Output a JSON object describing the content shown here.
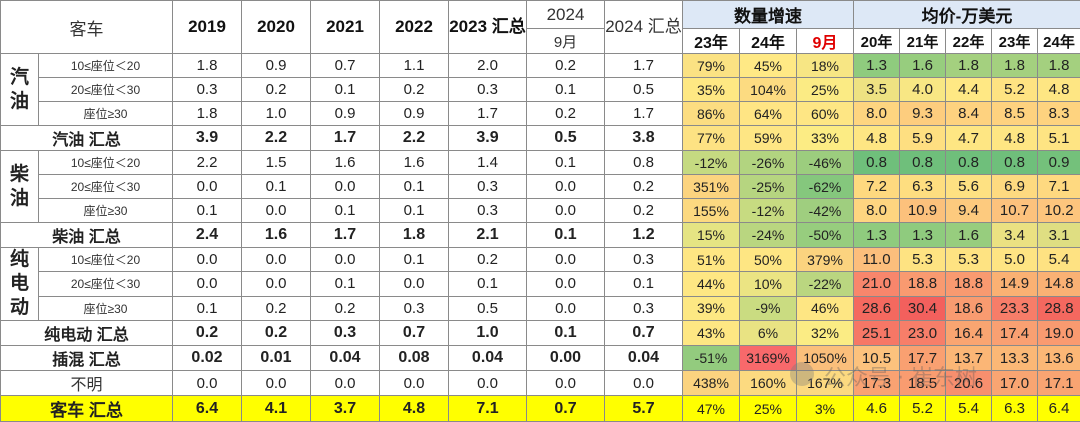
{
  "header": {
    "corner": "客车",
    "years": [
      "2019",
      "2020",
      "2021",
      "2022"
    ],
    "y2023_total": "2023 汇总",
    "y2024_top": "2024",
    "y2024_sub": "9月",
    "y2024_total": "2024 汇总",
    "growth_group": "数量增速",
    "growth_cols": [
      "23年",
      "24年",
      "9月"
    ],
    "price_group": "均价-万美元",
    "price_cols": [
      "20年",
      "21年",
      "22年",
      "23年",
      "24年"
    ]
  },
  "categories": {
    "gas": "汽油",
    "diesel": "柴油",
    "ev": "纯电动"
  },
  "rows": [
    {
      "label": "10≤座位＜20",
      "type": "sub",
      "vals": [
        "1.8",
        "0.9",
        "0.7",
        "1.1",
        "2.0",
        "0.2",
        "1.7"
      ],
      "growth": [
        "79%",
        "45%",
        "18%"
      ],
      "gbg": [
        "#fbe283",
        "#ffe985",
        "#f7e684"
      ],
      "price": [
        "1.3",
        "1.6",
        "1.8",
        "1.8",
        "1.8"
      ],
      "pbg": [
        "#8fcb7e",
        "#97cd7e",
        "#a4d07f",
        "#a4d07f",
        "#a4d07f"
      ]
    },
    {
      "label": "20≤座位＜30",
      "type": "sub",
      "vals": [
        "0.3",
        "0.2",
        "0.1",
        "0.2",
        "0.3",
        "0.1",
        "0.5"
      ],
      "growth": [
        "35%",
        "104%",
        "25%"
      ],
      "gbg": [
        "#fee883",
        "#fcdb81",
        "#fbeb84"
      ],
      "price": [
        "3.5",
        "4.0",
        "4.4",
        "5.2",
        "4.8"
      ],
      "pbg": [
        "#eee282",
        "#f8e784",
        "#ffe884",
        "#fee382",
        "#fee683"
      ]
    },
    {
      "label": "座位≥30",
      "type": "sub",
      "vals": [
        "1.8",
        "1.0",
        "0.9",
        "0.9",
        "1.7",
        "0.2",
        "1.7"
      ],
      "growth": [
        "86%",
        "64%",
        "60%"
      ],
      "gbg": [
        "#fcdd81",
        "#ffe584",
        "#fee684"
      ],
      "price": [
        "8.0",
        "9.3",
        "8.4",
        "8.5",
        "8.3"
      ],
      "pbg": [
        "#fed580",
        "#fdcd7e",
        "#fed27f",
        "#fed27f",
        "#fed37f"
      ]
    },
    {
      "label": "汽油 汇总",
      "type": "subtotal",
      "vals": [
        "3.9",
        "2.2",
        "1.7",
        "2.2",
        "3.9",
        "0.5",
        "3.8"
      ],
      "growth": [
        "77%",
        "59%",
        "33%"
      ],
      "gbg": [
        "#fde283",
        "#fee684",
        "#fcec84"
      ],
      "price": [
        "4.8",
        "5.9",
        "4.7",
        "4.8",
        "5.1"
      ],
      "pbg": [
        "#fee683",
        "#fedf81",
        "#fee683",
        "#fee683",
        "#fee483"
      ]
    },
    {
      "label": "10≤座位＜20",
      "type": "sub",
      "vals": [
        "2.2",
        "1.5",
        "1.6",
        "1.6",
        "1.4",
        "0.1",
        "0.8"
      ],
      "growth": [
        "-12%",
        "-26%",
        "-46%"
      ],
      "gbg": [
        "#c5da81",
        "#b2d480",
        "#9ccd7e"
      ],
      "price": [
        "0.8",
        "0.8",
        "0.8",
        "0.8",
        "0.9"
      ],
      "pbg": [
        "#6fbf7b",
        "#6fbf7b",
        "#6fbf7b",
        "#6fbf7b",
        "#74c17b"
      ]
    },
    {
      "label": "20≤座位＜30",
      "type": "sub",
      "vals": [
        "0.0",
        "0.1",
        "0.0",
        "0.1",
        "0.3",
        "0.0",
        "0.2"
      ],
      "growth": [
        "351%",
        "-25%",
        "-62%"
      ],
      "gbg": [
        "#fcd47f",
        "#b6d580",
        "#85c77d"
      ],
      "price": [
        "7.2",
        "6.3",
        "5.6",
        "6.9",
        "7.1"
      ],
      "pbg": [
        "#fed97f",
        "#fede80",
        "#fee182",
        "#feda80",
        "#fed980"
      ]
    },
    {
      "label": "座位≥30",
      "type": "sub",
      "vals": [
        "0.1",
        "0.0",
        "0.1",
        "0.1",
        "0.3",
        "0.0",
        "0.2"
      ],
      "growth": [
        "155%",
        "-12%",
        "-42%"
      ],
      "gbg": [
        "#fcd980",
        "#c7db81",
        "#9fce7f"
      ],
      "price": [
        "8.0",
        "10.9",
        "9.4",
        "10.7",
        "10.2"
      ],
      "pbg": [
        "#fed580",
        "#fcc17c",
        "#fdca7e",
        "#fcc27d",
        "#fdc57d"
      ]
    },
    {
      "label": "柴油 汇总",
      "type": "subtotal",
      "vals": [
        "2.4",
        "1.6",
        "1.7",
        "1.8",
        "2.1",
        "0.1",
        "1.2"
      ],
      "growth": [
        "15%",
        "-24%",
        "-50%"
      ],
      "gbg": [
        "#e5e483",
        "#b9d680",
        "#97cd7e"
      ],
      "price": [
        "1.3",
        "1.3",
        "1.6",
        "3.4",
        "3.1"
      ],
      "pbg": [
        "#8fcb7e",
        "#8fcb7e",
        "#97cd7e",
        "#ebe182",
        "#dfde82"
      ]
    },
    {
      "label": "10≤座位＜20",
      "type": "sub",
      "vals": [
        "0.0",
        "0.0",
        "0.0",
        "0.1",
        "0.2",
        "0.0",
        "0.3"
      ],
      "growth": [
        "51%",
        "50%",
        "379%"
      ],
      "gbg": [
        "#fee683",
        "#fee683",
        "#fbd37f"
      ],
      "price": [
        "11.0",
        "5.3",
        "5.3",
        "5.0",
        "5.4"
      ],
      "pbg": [
        "#fcbe7c",
        "#fee382",
        "#fee382",
        "#fee483",
        "#fee282"
      ]
    },
    {
      "label": "20≤座位＜30",
      "type": "sub",
      "vals": [
        "0.0",
        "0.0",
        "0.1",
        "0.0",
        "0.1",
        "0.0",
        "0.1"
      ],
      "growth": [
        "44%",
        "10%",
        "-22%"
      ],
      "gbg": [
        "#fee783",
        "#ebe483",
        "#bad680"
      ],
      "price": [
        "21.0",
        "18.8",
        "18.8",
        "14.9",
        "14.8"
      ],
      "pbg": [
        "#f8866c",
        "#f99a70",
        "#f99a70",
        "#fab173",
        "#fab174"
      ]
    },
    {
      "label": "座位≥30",
      "type": "sub",
      "vals": [
        "0.1",
        "0.2",
        "0.2",
        "0.3",
        "0.5",
        "0.0",
        "0.3"
      ],
      "growth": [
        "39%",
        "-9%",
        "46%"
      ],
      "gbg": [
        "#fde883",
        "#cadc81",
        "#fee683"
      ],
      "price": [
        "28.6",
        "30.4",
        "18.6",
        "23.3",
        "28.8"
      ],
      "pbg": [
        "#f4695f",
        "#f3605d",
        "#f99b70",
        "#f77d69",
        "#f4685f"
      ]
    },
    {
      "label": "纯电动 汇总",
      "type": "subtotal",
      "vals": [
        "0.2",
        "0.2",
        "0.3",
        "0.7",
        "1.0",
        "0.1",
        "0.7"
      ],
      "growth": [
        "43%",
        "6%",
        "32%"
      ],
      "gbg": [
        "#fee783",
        "#e9e383",
        "#fbec84"
      ],
      "price": [
        "25.1",
        "23.0",
        "16.4",
        "17.4",
        "19.0"
      ],
      "pbg": [
        "#f67766",
        "#f77e69",
        "#f9a571",
        "#f9a072",
        "#f99a70"
      ]
    },
    {
      "label": "插混 汇总",
      "type": "subtotal",
      "vals": [
        "0.02",
        "0.01",
        "0.04",
        "0.08",
        "0.04",
        "0.00",
        "0.04"
      ],
      "growth": [
        "-51%",
        "3169%",
        "1050%"
      ],
      "gbg": [
        "#93cb7e",
        "#f8696b",
        "#fbbf7b"
      ],
      "price": [
        "10.5",
        "17.7",
        "13.7",
        "13.3",
        "13.6"
      ],
      "pbg": [
        "#fcc27d",
        "#f9a071",
        "#fbb676",
        "#fbb876",
        "#fbb776"
      ]
    },
    {
      "label": "不明",
      "type": "plain",
      "vals": [
        "0.0",
        "0.0",
        "0.0",
        "0.0",
        "0.0",
        "0.0",
        "0.0"
      ],
      "growth": [
        "438%",
        "160%",
        "167%"
      ],
      "gbg": [
        "#fbd37f",
        "#fcda80",
        "#fcd980"
      ],
      "price": [
        "17.3",
        "18.5",
        "20.6",
        "17.0",
        "17.1"
      ],
      "pbg": [
        "#f9a272",
        "#f99c70",
        "#f88f6e",
        "#f9a572",
        "#f9a472"
      ]
    }
  ],
  "total": {
    "label": "客车 汇总",
    "vals": [
      "6.4",
      "4.1",
      "3.7",
      "4.8",
      "7.1",
      "0.7",
      "5.7"
    ],
    "growth": [
      "47%",
      "25%",
      "3%"
    ],
    "price": [
      "4.6",
      "5.2",
      "5.4",
      "6.3",
      "6.4"
    ]
  },
  "watermark": "公众号 · 崔东树"
}
